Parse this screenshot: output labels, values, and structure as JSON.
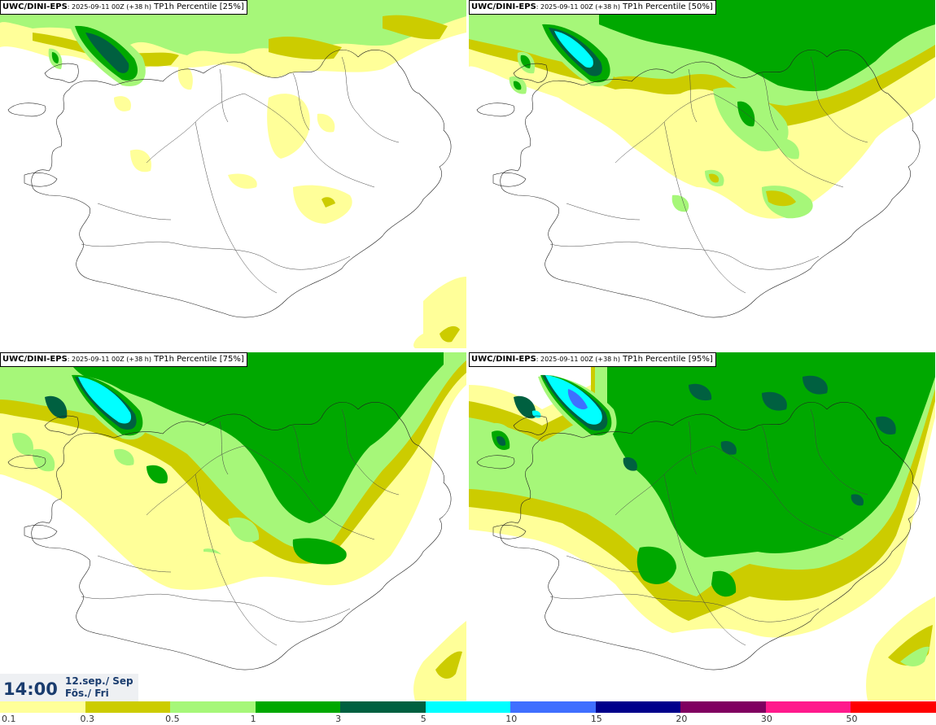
{
  "panels": [
    {
      "model": "UWC/DINI-EPS",
      "run": ": 2025-09-11 00Z (+38 h)",
      "field": " TP1h Percentile [25%]",
      "percentile": 25
    },
    {
      "model": "UWC/DINI-EPS",
      "run": ": 2025-09-11 00Z (+38 h)",
      "field": " TP1h Percentile [50%]",
      "percentile": 50
    },
    {
      "model": "UWC/DINI-EPS",
      "run": ": 2025-09-11 00Z (+38 h)",
      "field": " TP1h Percentile [75%]",
      "percentile": 75
    },
    {
      "model": "UWC/DINI-EPS",
      "run": ": 2025-09-11 00Z (+38 h)",
      "field": " TP1h Percentile [95%]",
      "percentile": 95
    }
  ],
  "time": {
    "clock": "14:00",
    "date_line1": "12.sep./ Sep",
    "date_line2": "Fös./ Fri"
  },
  "legend": {
    "ticks": [
      "0.1",
      "0.3",
      "0.5",
      "1",
      "3",
      "5",
      "10",
      "15",
      "20",
      "30",
      "50"
    ],
    "colors": [
      "#ffff99",
      "#cccc00",
      "#a6f779",
      "#00a800",
      "#006040",
      "#00ffff",
      "#3f6fff",
      "#00008b",
      "#800060",
      "#ff1a8c",
      "#ff0000"
    ]
  },
  "map": {
    "level_colors": {
      "l1": "#ffff99",
      "l2": "#cccc00",
      "l3": "#a6f779",
      "l4": "#00a800",
      "l5": "#006040",
      "l6": "#00ffff",
      "l7": "#3f6fff"
    }
  }
}
